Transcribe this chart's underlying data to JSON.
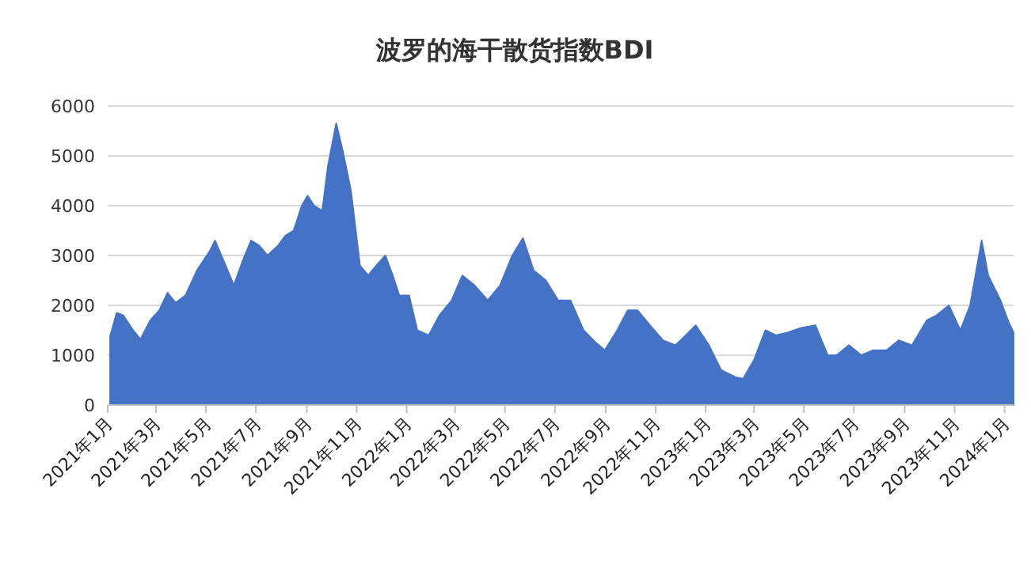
{
  "chart_data": {
    "type": "area",
    "title": "波罗的海干散货指数BDI",
    "x": [
      "2021-01-04",
      "2021-01-12",
      "2021-01-20",
      "2021-02-01",
      "2021-02-10",
      "2021-02-22",
      "2021-03-05",
      "2021-03-15",
      "2021-03-25",
      "2021-04-06",
      "2021-04-20",
      "2021-05-06",
      "2021-05-12",
      "2021-05-25",
      "2021-06-04",
      "2021-06-15",
      "2021-06-25",
      "2021-07-05",
      "2021-07-15",
      "2021-07-28",
      "2021-08-06",
      "2021-08-16",
      "2021-08-26",
      "2021-09-02",
      "2021-09-10",
      "2021-09-20",
      "2021-09-27",
      "2021-10-07",
      "2021-10-15",
      "2021-10-25",
      "2021-11-05",
      "2021-11-15",
      "2021-11-25",
      "2021-12-06",
      "2021-12-15",
      "2021-12-23",
      "2022-01-04",
      "2022-01-14",
      "2022-01-28",
      "2022-02-10",
      "2022-02-25",
      "2022-03-10",
      "2022-03-25",
      "2022-04-10",
      "2022-04-25",
      "2022-05-10",
      "2022-05-23",
      "2022-06-05",
      "2022-06-20",
      "2022-07-05",
      "2022-07-20",
      "2022-08-05",
      "2022-08-20",
      "2022-08-31",
      "2022-09-15",
      "2022-09-28",
      "2022-10-10",
      "2022-10-25",
      "2022-11-10",
      "2022-11-25",
      "2022-12-08",
      "2022-12-20",
      "2023-01-05",
      "2023-01-20",
      "2023-02-08",
      "2023-02-16",
      "2023-03-01",
      "2023-03-15",
      "2023-03-28",
      "2023-04-10",
      "2023-04-28",
      "2023-05-15",
      "2023-05-30",
      "2023-06-10",
      "2023-06-25",
      "2023-07-10",
      "2023-07-25",
      "2023-08-10",
      "2023-08-25",
      "2023-09-10",
      "2023-09-28",
      "2023-10-10",
      "2023-10-25",
      "2023-11-08",
      "2023-11-20",
      "2023-12-04",
      "2023-12-12",
      "2023-12-27",
      "2024-01-05",
      "2024-01-12"
    ],
    "series": [
      {
        "color": "#4472c4",
        "values": [
          1380,
          1850,
          1800,
          1500,
          1320,
          1700,
          1900,
          2250,
          2050,
          2200,
          2700,
          3100,
          3300,
          2800,
          2400,
          2900,
          3300,
          3200,
          3000,
          3200,
          3400,
          3500,
          4000,
          4200,
          4000,
          3900,
          4800,
          5650,
          5100,
          4300,
          2800,
          2600,
          2800,
          3000,
          2600,
          2200,
          2200,
          1500,
          1400,
          1800,
          2100,
          2600,
          2400,
          2100,
          2400,
          3000,
          3350,
          2700,
          2500,
          2100,
          2100,
          1500,
          1250,
          1100,
          1500,
          1900,
          1900,
          1600,
          1300,
          1200,
          1400,
          1600,
          1200,
          700,
          550,
          530,
          900,
          1500,
          1400,
          1450,
          1550,
          1600,
          1000,
          1000,
          1200,
          1000,
          1100,
          1100,
          1300,
          1200,
          1700,
          1800,
          2000,
          1500,
          2000,
          3300,
          2600,
          2100,
          1700,
          1450
        ]
      }
    ],
    "xlim": [
      "2021-01-01",
      "2024-01-12"
    ],
    "xticks": [
      {
        "value": "2021-01-01",
        "label": "2021年1月"
      },
      {
        "value": "2021-03-01",
        "label": "2021年3月"
      },
      {
        "value": "2021-05-01",
        "label": "2021年5月"
      },
      {
        "value": "2021-07-01",
        "label": "2021年7月"
      },
      {
        "value": "2021-09-01",
        "label": "2021年9月"
      },
      {
        "value": "2021-11-01",
        "label": "2021年11月"
      },
      {
        "value": "2022-01-01",
        "label": "2022年1月"
      },
      {
        "value": "2022-03-01",
        "label": "2022年3月"
      },
      {
        "value": "2022-05-01",
        "label": "2022年5月"
      },
      {
        "value": "2022-07-01",
        "label": "2022年7月"
      },
      {
        "value": "2022-09-01",
        "label": "2022年9月"
      },
      {
        "value": "2022-11-01",
        "label": "2022年11月"
      },
      {
        "value": "2023-01-01",
        "label": "2023年1月"
      },
      {
        "value": "2023-03-01",
        "label": "2023年3月"
      },
      {
        "value": "2023-05-01",
        "label": "2023年5月"
      },
      {
        "value": "2023-07-01",
        "label": "2023年7月"
      },
      {
        "value": "2023-09-01",
        "label": "2023年9月"
      },
      {
        "value": "2023-11-01",
        "label": "2023年11月"
      },
      {
        "value": "2024-01-01",
        "label": "2024年1月"
      }
    ],
    "ylim": [
      0,
      6000
    ],
    "yticks": [
      0,
      1000,
      2000,
      3000,
      4000,
      5000,
      6000
    ],
    "grid": "y"
  }
}
